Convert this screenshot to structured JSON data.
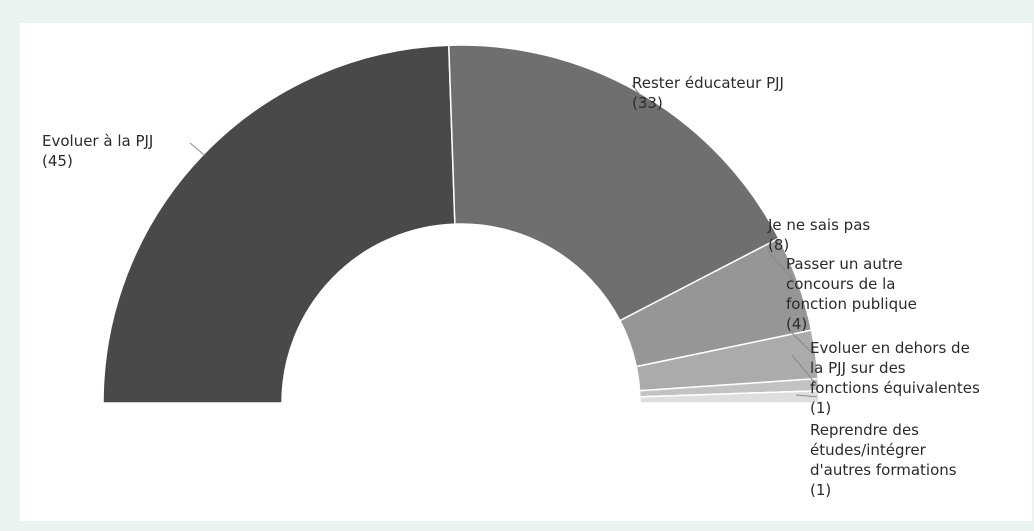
{
  "chart_data": {
    "type": "pie",
    "variant": "half-donut",
    "slices": [
      {
        "label": "Evoluer à la PJJ",
        "value": 45,
        "value_text": "(45)",
        "color": "#4b4848"
      },
      {
        "label": "Rester éducateur PJJ",
        "value": 33,
        "value_text": "(33)",
        "color": "#716e6e"
      },
      {
        "label": "Je ne sais pas",
        "value": 8,
        "value_text": "(8)",
        "color": "#979595"
      },
      {
        "label": "Passer un autre concours de la fonction publique",
        "value": 4,
        "value_text": "(4)",
        "color": "#acabab"
      },
      {
        "label": "Evoluer en dehors de la PJJ sur des fonctions équivalentes",
        "value": 1,
        "value_text": "(1)",
        "color": "#c3c2c2"
      },
      {
        "label": "Reprendre des études/intégrer d'autres formations",
        "value": 1,
        "value_text": "(1)",
        "color": "#dedede"
      }
    ],
    "title": "",
    "legend": "none"
  }
}
